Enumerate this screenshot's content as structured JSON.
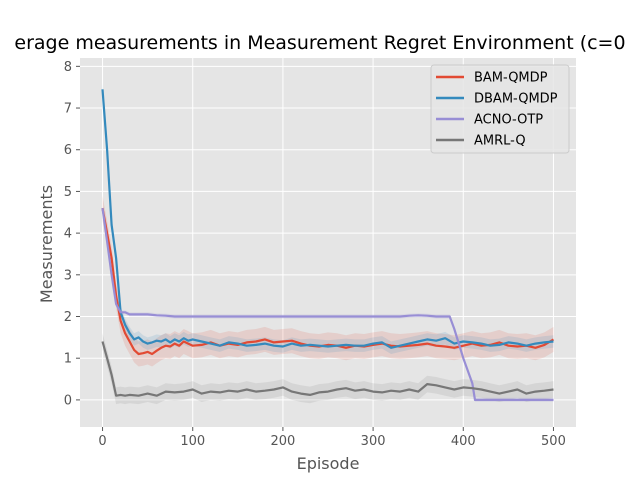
{
  "chart_data": {
    "type": "line",
    "title": "erage measurements in Measurement Regret Environment (c=0",
    "xlabel": "Episode",
    "ylabel": "Measurements",
    "xlim": [
      -25,
      525
    ],
    "ylim": [
      -0.65,
      8.2
    ],
    "xticks": [
      0,
      100,
      200,
      300,
      400,
      500
    ],
    "yticks": [
      0,
      1,
      2,
      3,
      4,
      5,
      6,
      7,
      8
    ],
    "grid": true,
    "legend_position": "top-right",
    "series": [
      {
        "name": "BAM-QMDP",
        "color": "#E24A33",
        "x": [
          0,
          5,
          10,
          15,
          20,
          25,
          30,
          35,
          40,
          45,
          50,
          55,
          60,
          65,
          70,
          75,
          80,
          85,
          90,
          95,
          100,
          110,
          120,
          130,
          140,
          150,
          160,
          170,
          180,
          190,
          200,
          210,
          220,
          230,
          240,
          250,
          260,
          270,
          280,
          290,
          300,
          310,
          320,
          330,
          340,
          350,
          360,
          370,
          380,
          390,
          400,
          410,
          420,
          430,
          440,
          450,
          460,
          470,
          480,
          490,
          500
        ],
        "y": [
          4.6,
          4.0,
          3.4,
          2.5,
          1.9,
          1.6,
          1.4,
          1.2,
          1.1,
          1.12,
          1.15,
          1.1,
          1.18,
          1.25,
          1.3,
          1.28,
          1.35,
          1.3,
          1.4,
          1.35,
          1.3,
          1.32,
          1.38,
          1.3,
          1.35,
          1.32,
          1.38,
          1.4,
          1.45,
          1.38,
          1.4,
          1.42,
          1.35,
          1.3,
          1.28,
          1.32,
          1.3,
          1.25,
          1.3,
          1.28,
          1.32,
          1.35,
          1.3,
          1.28,
          1.3,
          1.32,
          1.35,
          1.3,
          1.28,
          1.25,
          1.3,
          1.35,
          1.3,
          1.32,
          1.38,
          1.3,
          1.28,
          1.3,
          1.25,
          1.32,
          1.45
        ],
        "band": 0.3
      },
      {
        "name": "DBAM-QMDP",
        "color": "#348ABD",
        "x": [
          0,
          5,
          10,
          15,
          20,
          25,
          30,
          35,
          40,
          45,
          50,
          55,
          60,
          65,
          70,
          75,
          80,
          85,
          90,
          95,
          100,
          110,
          120,
          130,
          140,
          150,
          160,
          170,
          180,
          190,
          200,
          210,
          220,
          230,
          240,
          250,
          260,
          270,
          280,
          290,
          300,
          310,
          320,
          330,
          340,
          350,
          360,
          370,
          380,
          390,
          400,
          410,
          420,
          430,
          440,
          450,
          460,
          470,
          480,
          490,
          500
        ],
        "y": [
          7.45,
          6.0,
          4.2,
          3.4,
          2.1,
          1.8,
          1.6,
          1.45,
          1.5,
          1.4,
          1.35,
          1.38,
          1.42,
          1.4,
          1.45,
          1.38,
          1.45,
          1.4,
          1.48,
          1.42,
          1.45,
          1.4,
          1.35,
          1.3,
          1.38,
          1.35,
          1.3,
          1.32,
          1.35,
          1.3,
          1.28,
          1.35,
          1.3,
          1.32,
          1.3,
          1.28,
          1.3,
          1.32,
          1.3,
          1.3,
          1.35,
          1.38,
          1.25,
          1.3,
          1.35,
          1.4,
          1.45,
          1.42,
          1.48,
          1.35,
          1.4,
          1.38,
          1.35,
          1.3,
          1.32,
          1.38,
          1.35,
          1.3,
          1.35,
          1.38,
          1.4
        ],
        "band": 0.15
      },
      {
        "name": "ACNO-OTP",
        "color": "#988ED5",
        "x": [
          0,
          5,
          10,
          15,
          20,
          25,
          30,
          40,
          50,
          60,
          70,
          80,
          100,
          150,
          200,
          250,
          300,
          330,
          340,
          350,
          360,
          370,
          385,
          390,
          400,
          410,
          413,
          420,
          450,
          480,
          500
        ],
        "y": [
          4.6,
          3.8,
          3.0,
          2.3,
          2.1,
          2.1,
          2.05,
          2.05,
          2.05,
          2.03,
          2.02,
          2.0,
          2.0,
          2.0,
          2.0,
          2.0,
          2.0,
          2.0,
          2.02,
          2.03,
          2.02,
          2.0,
          2.0,
          1.7,
          1.0,
          0.4,
          0.0,
          0.0,
          0.0,
          0.0,
          0.0
        ],
        "band": 0.05
      },
      {
        "name": "AMRL-Q",
        "color": "#777777",
        "x": [
          0,
          5,
          10,
          15,
          20,
          25,
          30,
          40,
          50,
          60,
          70,
          80,
          90,
          100,
          110,
          120,
          130,
          140,
          150,
          160,
          170,
          180,
          190,
          200,
          210,
          220,
          230,
          240,
          250,
          260,
          270,
          280,
          290,
          300,
          310,
          320,
          330,
          340,
          350,
          360,
          370,
          380,
          390,
          400,
          410,
          420,
          430,
          440,
          450,
          460,
          470,
          480,
          490,
          500
        ],
        "y": [
          1.4,
          1.0,
          0.6,
          0.1,
          0.12,
          0.1,
          0.12,
          0.1,
          0.15,
          0.1,
          0.2,
          0.18,
          0.2,
          0.25,
          0.15,
          0.2,
          0.18,
          0.22,
          0.2,
          0.25,
          0.2,
          0.22,
          0.25,
          0.3,
          0.2,
          0.15,
          0.12,
          0.18,
          0.2,
          0.25,
          0.28,
          0.22,
          0.25,
          0.2,
          0.18,
          0.22,
          0.2,
          0.25,
          0.2,
          0.38,
          0.35,
          0.3,
          0.25,
          0.3,
          0.28,
          0.25,
          0.2,
          0.15,
          0.2,
          0.25,
          0.15,
          0.2,
          0.22,
          0.25
        ],
        "band": 0.2
      }
    ]
  }
}
